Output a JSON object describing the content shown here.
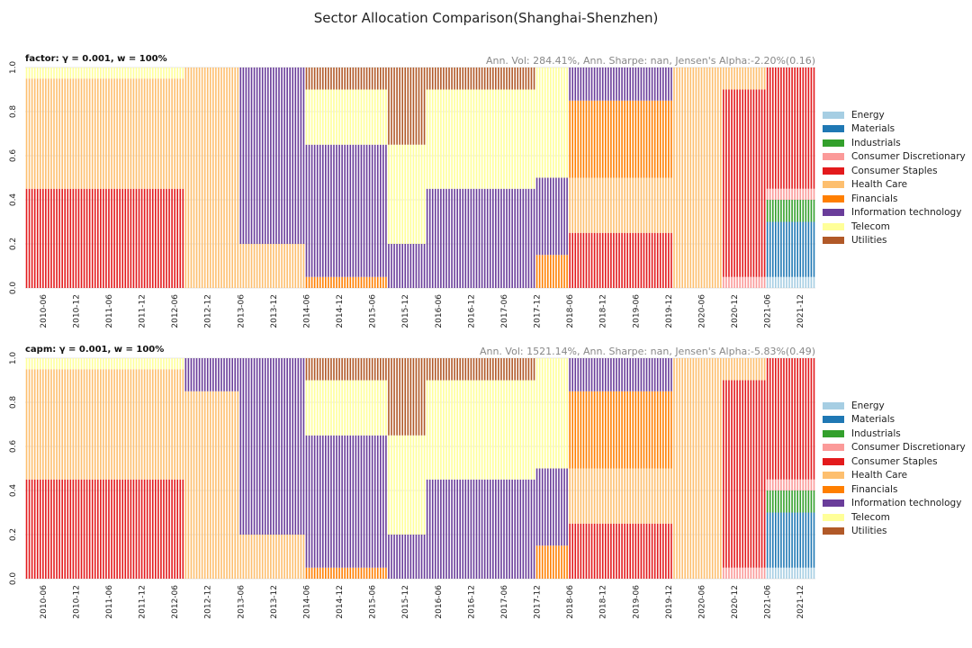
{
  "suptitle": "Sector Allocation Comparison(Shanghai-Shenzhen)",
  "sectors": [
    "Energy",
    "Materials",
    "Industrials",
    "Consumer Discretionary",
    "Consumer Staples",
    "Health Care",
    "Financials",
    "Information technology",
    "Telecom",
    "Utilities"
  ],
  "colors": {
    "Energy": "#a6cee3",
    "Materials": "#1f78b4",
    "Industrials": "#33a02c",
    "Consumer Discretionary": "#fb9a99",
    "Consumer Staples": "#e31a1c",
    "Health Care": "#fdbf6f",
    "Financials": "#ff7f00",
    "Information technology": "#6a3d9a",
    "Telecom": "#ffff99",
    "Utilities": "#b15928"
  },
  "x_tick_labels": [
    "2010-06",
    "2010-12",
    "2011-06",
    "2011-12",
    "2012-06",
    "2012-12",
    "2013-06",
    "2013-12",
    "2014-06",
    "2014-12",
    "2015-06",
    "2015-12",
    "2016-06",
    "2016-12",
    "2017-06",
    "2017-12",
    "2018-06",
    "2018-12",
    "2019-06",
    "2019-12",
    "2020-06",
    "2020-12",
    "2021-06",
    "2021-12"
  ],
  "y_tick_labels": [
    "0.0",
    "0.2",
    "0.4",
    "0.6",
    "0.8",
    "1.0"
  ],
  "chart_data": [
    {
      "type": "bar",
      "stacked": true,
      "title_left": "factor: γ = 0.001, w = 100%",
      "title_right": "Ann. Vol: 284.41%, Ann. Sharpe: nan, Jensen's Alpha:-2.20%(0.16)",
      "ylim": [
        0,
        1
      ],
      "x_start": "2010-03",
      "x_end": "2022-03",
      "x_frequency": "half-monthly",
      "legend": "right",
      "segments": [
        {
          "from": "2010-03",
          "to": "2012-08",
          "composition": {
            "Consumer Staples": 0.45,
            "Health Care": 0.5,
            "Telecom": 0.05
          }
        },
        {
          "from": "2012-08",
          "to": "2013-06",
          "composition": {
            "Health Care": 1.0
          }
        },
        {
          "from": "2013-06",
          "to": "2014-06",
          "composition": {
            "Information technology": 0.8,
            "Health Care": 0.2
          }
        },
        {
          "from": "2014-06",
          "to": "2015-09",
          "composition": {
            "Information technology": 0.6,
            "Telecom": 0.25,
            "Utilities": 0.1,
            "Financials": 0.05
          }
        },
        {
          "from": "2015-09",
          "to": "2016-04",
          "composition": {
            "Telecom": 0.45,
            "Utilities": 0.35,
            "Information technology": 0.2
          }
        },
        {
          "from": "2016-04",
          "to": "2017-12",
          "composition": {
            "Information technology": 0.45,
            "Telecom": 0.45,
            "Utilities": 0.1
          }
        },
        {
          "from": "2017-12",
          "to": "2018-06",
          "composition": {
            "Telecom": 0.5,
            "Information technology": 0.35,
            "Financials": 0.15
          }
        },
        {
          "from": "2018-06",
          "to": "2020-01",
          "composition": {
            "Financials": 0.35,
            "Consumer Staples": 0.25,
            "Health Care": 0.25,
            "Information technology": 0.15
          }
        },
        {
          "from": "2020-01",
          "to": "2020-10",
          "composition": {
            "Health Care": 1.0
          }
        },
        {
          "from": "2020-10",
          "to": "2021-06",
          "composition": {
            "Consumer Staples": 0.85,
            "Health Care": 0.1,
            "Consumer Discretionary": 0.05
          }
        },
        {
          "from": "2021-06",
          "to": "2022-03",
          "composition": {
            "Consumer Staples": 0.55,
            "Materials": 0.25,
            "Industrials": 0.1,
            "Energy": 0.05,
            "Consumer Discretionary": 0.05
          }
        }
      ]
    },
    {
      "type": "bar",
      "stacked": true,
      "title_left": "capm: γ = 0.001, w = 100%",
      "title_right": "Ann. Vol: 1521.14%, Ann. Sharpe: nan, Jensen's Alpha:-5.83%(0.49)",
      "ylim": [
        0,
        1
      ],
      "x_start": "2010-03",
      "x_end": "2022-03",
      "x_frequency": "half-monthly",
      "legend": "right",
      "segments": [
        {
          "from": "2010-03",
          "to": "2012-08",
          "composition": {
            "Consumer Staples": 0.45,
            "Health Care": 0.5,
            "Telecom": 0.05
          }
        },
        {
          "from": "2012-08",
          "to": "2013-06",
          "composition": {
            "Health Care": 0.85,
            "Information technology": 0.15
          }
        },
        {
          "from": "2013-06",
          "to": "2014-06",
          "composition": {
            "Information technology": 0.8,
            "Health Care": 0.2
          }
        },
        {
          "from": "2014-06",
          "to": "2015-09",
          "composition": {
            "Information technology": 0.6,
            "Telecom": 0.25,
            "Utilities": 0.1,
            "Financials": 0.05
          }
        },
        {
          "from": "2015-09",
          "to": "2016-04",
          "composition": {
            "Telecom": 0.45,
            "Utilities": 0.35,
            "Information technology": 0.2
          }
        },
        {
          "from": "2016-04",
          "to": "2017-12",
          "composition": {
            "Information technology": 0.45,
            "Telecom": 0.45,
            "Utilities": 0.1
          }
        },
        {
          "from": "2017-12",
          "to": "2018-06",
          "composition": {
            "Telecom": 0.5,
            "Information technology": 0.35,
            "Financials": 0.15
          }
        },
        {
          "from": "2018-06",
          "to": "2020-01",
          "composition": {
            "Financials": 0.35,
            "Consumer Staples": 0.25,
            "Health Care": 0.25,
            "Information technology": 0.15
          }
        },
        {
          "from": "2020-01",
          "to": "2020-10",
          "composition": {
            "Health Care": 1.0
          }
        },
        {
          "from": "2020-10",
          "to": "2021-06",
          "composition": {
            "Consumer Staples": 0.85,
            "Health Care": 0.1,
            "Consumer Discretionary": 0.05
          }
        },
        {
          "from": "2021-06",
          "to": "2022-03",
          "composition": {
            "Consumer Staples": 0.55,
            "Materials": 0.25,
            "Industrials": 0.1,
            "Energy": 0.05,
            "Consumer Discretionary": 0.05
          }
        }
      ]
    }
  ]
}
